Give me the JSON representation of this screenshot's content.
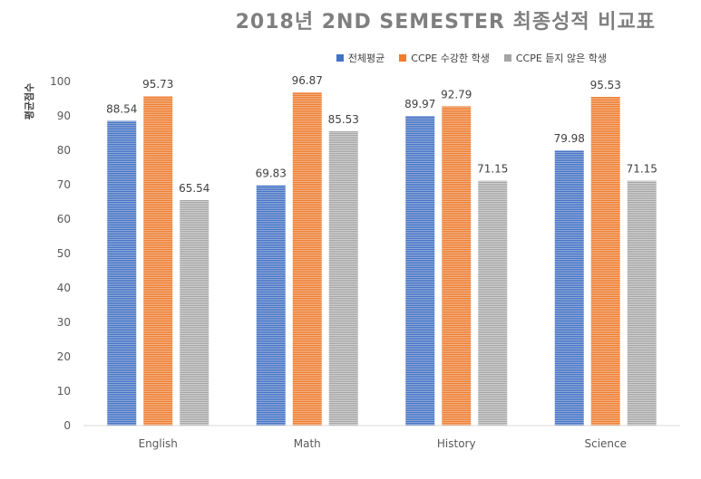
{
  "chart_data": {
    "type": "bar",
    "title": "2018년 2ND SEMESTER 최종성적 비교표",
    "ylabel": "평균점수",
    "xlabel": "",
    "categories": [
      "English",
      "Math",
      "History",
      "Science"
    ],
    "ylim": [
      0,
      100
    ],
    "yticks": [
      0,
      10,
      20,
      30,
      40,
      50,
      60,
      70,
      80,
      90,
      100
    ],
    "grid": false,
    "legend_position": "top",
    "series": [
      {
        "name": "전체평균",
        "color": "#4472c4",
        "values": [
          88.54,
          69.83,
          89.97,
          79.98
        ],
        "labels": [
          "88.54",
          "69.83",
          "89.97",
          "79.98"
        ]
      },
      {
        "name": "CCPE 수강한 학생",
        "color": "#ed7d31",
        "values": [
          95.73,
          96.87,
          92.79,
          95.53
        ],
        "labels": [
          "95.73",
          "96.87",
          "92.79",
          "95.53"
        ]
      },
      {
        "name": "CCPE 듣지 않은 학생",
        "color": "#a5a5a5",
        "values": [
          65.54,
          85.53,
          71.15,
          71.15
        ],
        "labels": [
          "65.54",
          "85.53",
          "71.15",
          "71.15"
        ]
      }
    ]
  }
}
